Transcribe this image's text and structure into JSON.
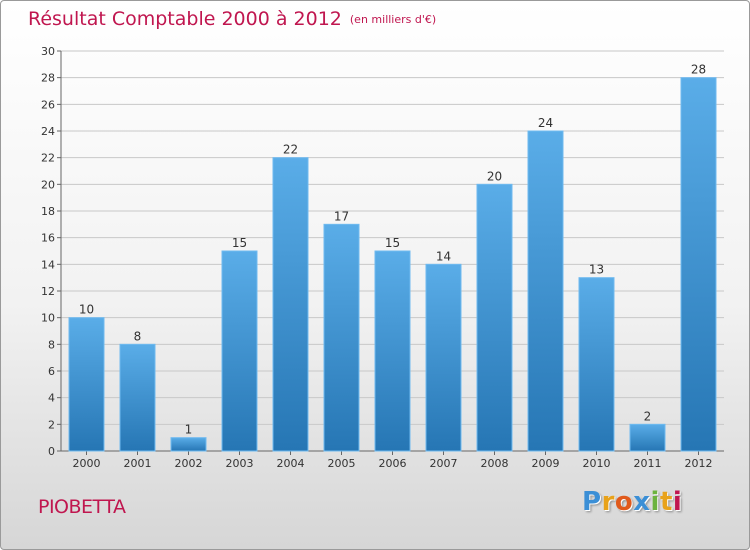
{
  "chart_data": {
    "type": "bar",
    "title": "Résultat Comptable 2000 à 2012",
    "subtitle": "(en milliers d'€)",
    "categories": [
      "2000",
      "2001",
      "2002",
      "2003",
      "2004",
      "2005",
      "2006",
      "2007",
      "2008",
      "2009",
      "2010",
      "2011",
      "2012"
    ],
    "values": [
      10,
      8,
      1,
      15,
      22,
      17,
      15,
      14,
      20,
      24,
      13,
      2,
      28
    ],
    "ylim": [
      0,
      30
    ],
    "yticks": [
      0,
      2,
      4,
      6,
      8,
      10,
      12,
      14,
      16,
      18,
      20,
      22,
      24,
      26,
      28,
      30
    ],
    "xlabel": "",
    "ylabel": "",
    "grid": true
  },
  "commune": "PIOBETTA",
  "logo": {
    "letters": [
      "P",
      "r",
      "o",
      "x",
      "i",
      "t",
      "i"
    ],
    "colors": [
      "#3b8fd6",
      "#e8a21a",
      "#e05a1c",
      "#3b8fd6",
      "#6cb33f",
      "#e8a21a",
      "#c0164f"
    ]
  },
  "colors": {
    "title": "#c0164f",
    "bar_top": "#5aade8",
    "bar_bottom": "#2676b4",
    "grid": "#c8c8c8",
    "axis_text": "#333333"
  }
}
